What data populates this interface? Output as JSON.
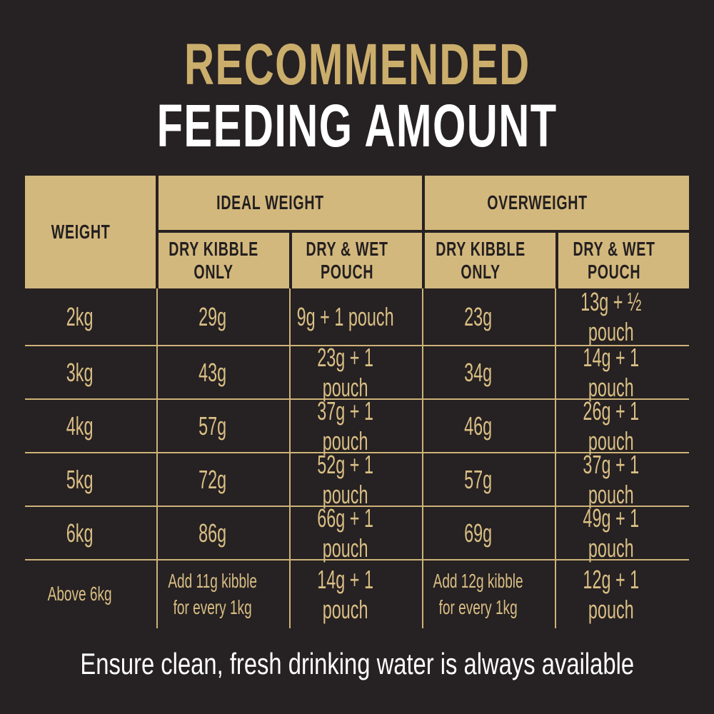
{
  "title": {
    "line1": "RECOMMENDED",
    "line2": "FEEDING AMOUNT"
  },
  "table": {
    "corner_header": "WEIGHT",
    "groups": [
      {
        "label": "IDEAL WEIGHT"
      },
      {
        "label": "OVERWEIGHT"
      }
    ],
    "sub_headers": [
      "DRY KIBBLE ONLY",
      "DRY & WET POUCH",
      "DRY KIBBLE ONLY",
      "DRY & WET POUCH"
    ],
    "rows": [
      {
        "cells": [
          "2kg",
          "29g",
          "9g + 1 pouch",
          "23g",
          "13g + ½ pouch"
        ]
      },
      {
        "cells": [
          "3kg",
          "43g",
          "23g + 1 pouch",
          "34g",
          "14g + 1 pouch"
        ]
      },
      {
        "cells": [
          "4kg",
          "57g",
          "37g + 1 pouch",
          "46g",
          "26g + 1 pouch"
        ]
      },
      {
        "cells": [
          "5kg",
          "72g",
          "52g + 1 pouch",
          "57g",
          "37g + 1 pouch"
        ]
      },
      {
        "cells": [
          "6kg",
          "86g",
          "66g + 1 pouch",
          "69g",
          "49g + 1 pouch"
        ]
      },
      {
        "cells": [
          "Above 6kg",
          "Add 11g kibble for every 1kg",
          "14g + 1 pouch",
          "Add 12g kibble for every 1kg",
          "12g + 1 pouch"
        ]
      }
    ]
  },
  "footer": {
    "note": "Ensure clean, fresh drinking water is always available"
  },
  "colors": {
    "background": "#262122",
    "header_gold": "#d3b87d",
    "grid_line_gold": "#cdb378",
    "cell_text_gold": "#d9bf85",
    "title_gold": "#cbae6c",
    "text_on_gold": "#231f20",
    "white_text": "#ffffff"
  }
}
